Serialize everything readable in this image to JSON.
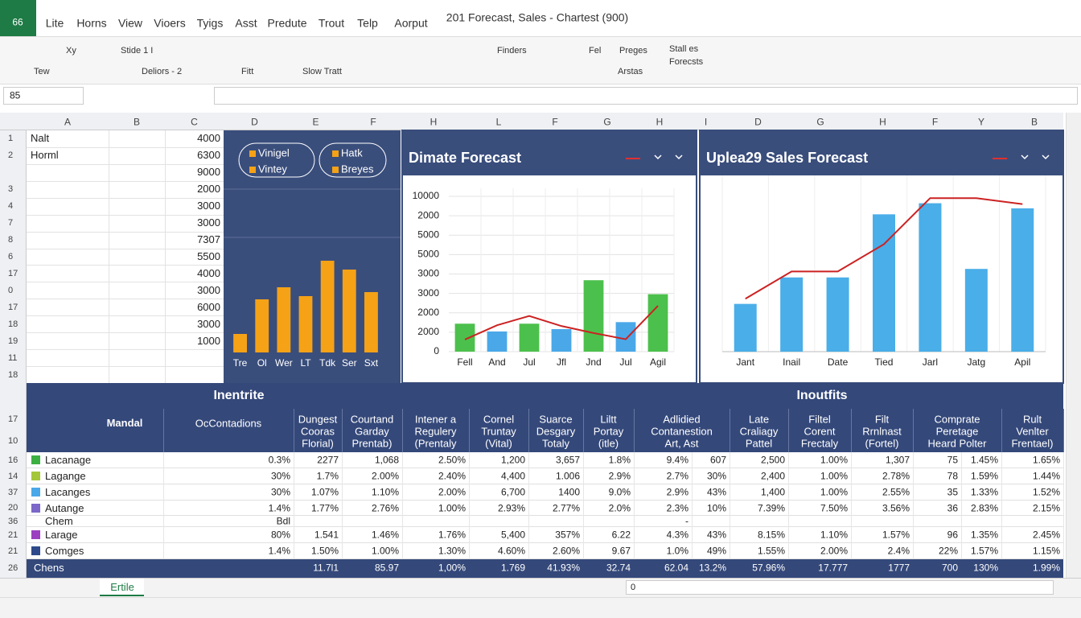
{
  "app": {
    "logo": "66",
    "menu": [
      "Lite",
      "Horns",
      "View",
      "Vioers",
      "Tyigs",
      "Asst",
      "Predute",
      "Trout",
      "Telp",
      "Aorput"
    ],
    "title": "201 Forecast, Sales - Chartest (900)"
  },
  "ribbon": {
    "items": [
      "Xy",
      "Tew",
      "Stide 1 I",
      "Deliors - 2",
      "Fitt",
      "Slow Tratt",
      "Finders",
      "Fel",
      "Preges",
      "Arstas",
      "Stall es",
      "Forecsts"
    ]
  },
  "formula_bar": {
    "cell": "85"
  },
  "columns": [
    "A",
    "B",
    "C",
    "D",
    "E",
    "F",
    "H",
    "L",
    "F",
    "G",
    "H",
    "I",
    "D",
    "G",
    "H",
    "F",
    "Y",
    "B"
  ],
  "rows": [
    "1",
    "2",
    null,
    "3",
    "4",
    "7",
    "8",
    "6",
    "17",
    "0",
    "17",
    "18",
    "19",
    "11",
    "18"
  ],
  "cells": {
    "a": [
      "Nalt",
      "Horml"
    ],
    "c": [
      "4000",
      "6300",
      "9000",
      "2000",
      "3000",
      "3000",
      "7307",
      "5500",
      "4000",
      "3000",
      "6000",
      "3000",
      "1000"
    ]
  },
  "chart_data": [
    {
      "type": "bar",
      "legend_labels": [
        "Vinigel",
        "Vintey",
        "Hatk",
        "Breyes"
      ],
      "categories": [
        "Tre",
        "Ol",
        "Wer",
        "LT",
        "Tdk",
        "Ser",
        "Sxt"
      ],
      "values": [
        23,
        66,
        81,
        70,
        114,
        103,
        75
      ],
      "color": "#f5a216",
      "ylim": [
        0,
        150
      ]
    },
    {
      "type": "bar",
      "title": "Dimate Forecast",
      "categories": [
        "Fell",
        "And",
        "Jul",
        "Jfl",
        "Jnd",
        "Jul",
        "Agil"
      ],
      "values": [
        1800,
        1300,
        1800,
        1450,
        4600,
        1900,
        3700
      ],
      "colors": [
        "#4cc04c",
        "#4aa8e8",
        "#4cc04c",
        "#4aa8e8",
        "#4cc04c",
        "#4aa8e8",
        "#4cc04c"
      ],
      "line_values": [
        780,
        1700,
        2300,
        1650,
        1200,
        800,
        2950
      ],
      "line_color": "#cc2222",
      "ylim": [
        0,
        10000
      ],
      "yticks": [
        0,
        {
          "value": 1250,
          "label": "2000"
        },
        {
          "value": 2500,
          "label": "2000"
        },
        {
          "value": 3750,
          "label": "3000"
        },
        {
          "value": 5000,
          "label": "3000"
        },
        {
          "value": 6250,
          "label": "5000"
        },
        {
          "value": 7500,
          "label": "5000"
        },
        {
          "value": 8750,
          "label": "2000"
        },
        {
          "value": 10000,
          "label": "10000"
        }
      ],
      "grid": true
    },
    {
      "type": "bar",
      "title": "Uplea29 Sales Forecast",
      "categories": [
        "Jant",
        "Inail",
        "Date",
        "Tied",
        "Jarl",
        "Jatg",
        "Apil"
      ],
      "values": [
        56,
        87,
        87,
        161,
        174,
        97,
        168
      ],
      "color": "#4aaee8",
      "line_values": [
        62,
        94,
        94,
        126,
        180,
        180,
        173
      ],
      "line_color": "#cc2222",
      "ylim": [
        0,
        200
      ]
    }
  ],
  "table": {
    "titles": [
      "Inentrite",
      "Inoutfits"
    ],
    "row_numbers": [
      "17",
      "10",
      "16",
      "14",
      "37",
      "20",
      "36",
      "21",
      "21",
      "26"
    ],
    "name_header": "Mandal",
    "headers": [
      "OcContadions",
      "Dungest\nCooras\nFlorial)",
      "Courtand\nGarday\nPrentab)",
      "Intener a\nRegulery\n(Prentaly",
      "Cornel\nTruntay\n(Vital)",
      "Suarce\nDesgary\nTotaly",
      "Liltt\nPortay\n(itle)",
      "Adlidied\nContanestion\nArt, Ast",
      "Late\nCraliagy\nPattel",
      "Filtel\nCorent\nFrectaly",
      "Filt\nRrnlnast\n(Fortel)",
      "Comprate\nPeretage\nHeard Polter",
      "Rult\nVenlter\nFrentael)"
    ],
    "rows": [
      {
        "name": "Lacanage",
        "color": "#3cb043",
        "values": [
          "0.3%",
          "2277",
          "1,068",
          "2.50%",
          "1,200",
          "3,657",
          "1.8%",
          "9.4%",
          "607",
          "2,500",
          "1.00%",
          "1,307",
          "75",
          "1.45%",
          "1.65%"
        ]
      },
      {
        "name": "Lagange",
        "color": "#a4c639",
        "values": [
          "30%",
          "1.7%",
          "2.00%",
          "2.40%",
          "4,400",
          "1.006",
          "2.9%",
          "2.7%",
          "30%",
          "2,400",
          "1.00%",
          "2.78%",
          "78",
          "1.59%",
          "1.44%"
        ]
      },
      {
        "name": "Lacanges",
        "color": "#4aa8e8",
        "values": [
          "30%",
          "1.07%",
          "1.10%",
          "2.00%",
          "6,700",
          "1400",
          "9.0%",
          "2.9%",
          "43%",
          "1,400",
          "1.00%",
          "2.55%",
          "35",
          "1.33%",
          "1.52%"
        ]
      },
      {
        "name": "Autange",
        "color": "#7b68c8",
        "values": [
          "1.4%",
          "1.77%",
          "2.76%",
          "1.00%",
          "2.93%",
          "2.77%",
          "2.0%",
          "2.3%",
          "10%",
          "7.39%",
          "7.50%",
          "3.56%",
          "36",
          "2.83%",
          "2.15%"
        ]
      },
      {
        "name": "Chem",
        "color": null,
        "values": [
          "Bdl",
          null,
          null,
          null,
          null,
          null,
          null,
          "-",
          null,
          null,
          null,
          null,
          null,
          null,
          null
        ]
      },
      {
        "name": "Larage",
        "color": "#9b3fc0",
        "values": [
          "80%",
          "1.541",
          "1.46%",
          "1.76%",
          "5,400",
          "357%",
          "6.22",
          "4.3%",
          "43%",
          "8.15%",
          "1.10%",
          "1.57%",
          "96",
          "1.35%",
          "2.45%"
        ]
      },
      {
        "name": "Comges",
        "color": "#2e4a8a",
        "values": [
          "1.4%",
          "1.50%",
          "1.00%",
          "1.30%",
          "4.60%",
          "2.60%",
          "9.67",
          "1.0%",
          "49%",
          "1.55%",
          "2.00%",
          "2.4%",
          "22%",
          "1.57%",
          "1.15%"
        ]
      }
    ],
    "total": {
      "name": "Chens",
      "values": [
        null,
        "11.7l1",
        "85.97",
        "1,00%",
        "1.769",
        "41.93%",
        "32.74",
        "62.04",
        "13.2%",
        "57.96%",
        "17.777",
        "1777",
        "700",
        "130%",
        "1.99%"
      ]
    }
  },
  "sheet_tabs": [
    "Ertile"
  ],
  "status": {
    "position": "0"
  }
}
